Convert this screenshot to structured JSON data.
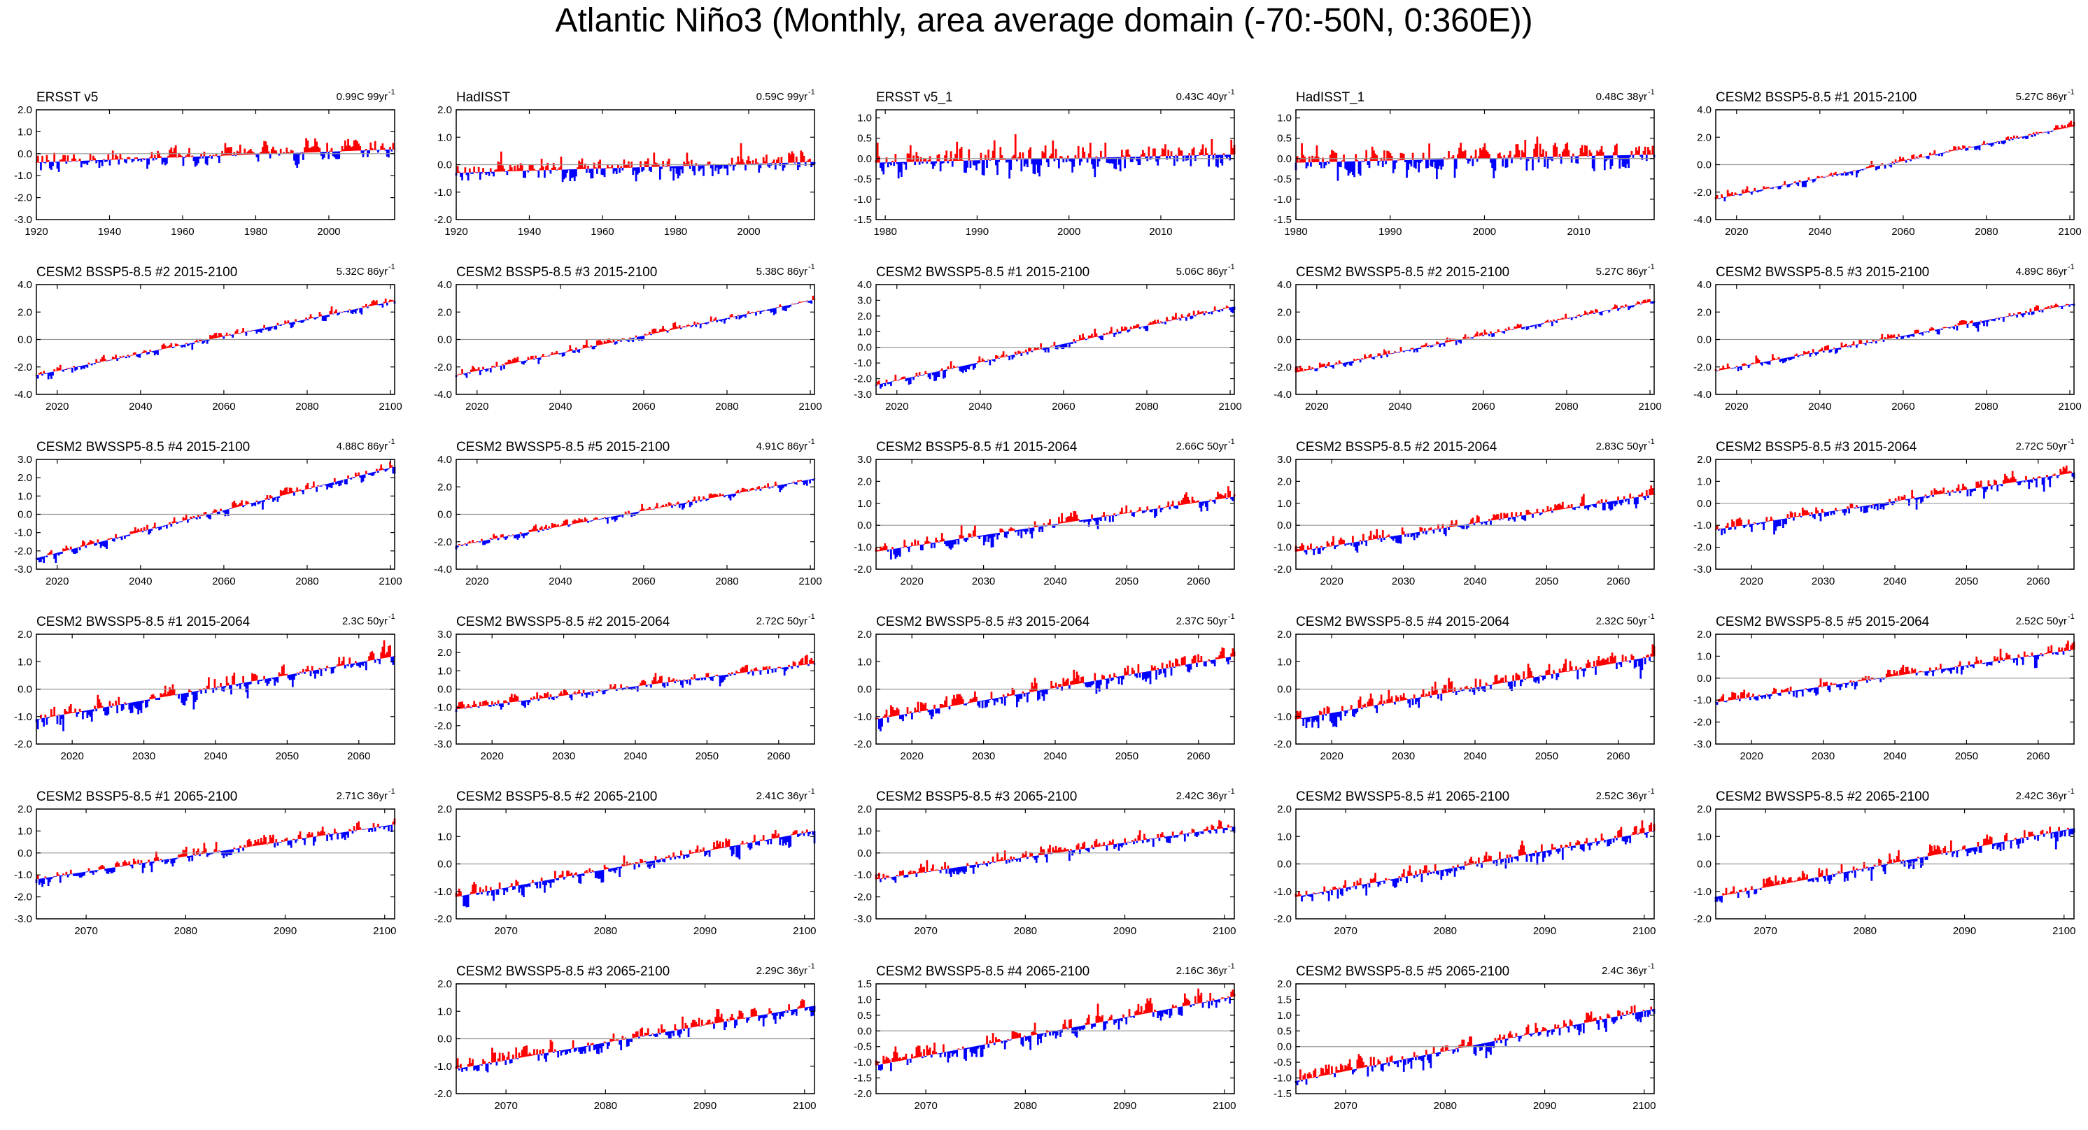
{
  "title": "Atlantic Niño3 (Monthly, area average domain (-70:-50N, 0:360E))",
  "colors": {
    "positive": "#ff0000",
    "negative": "#0000ff",
    "frame": "#000000",
    "zero_line": "#999999"
  },
  "chart_data": [
    {
      "id": "p1",
      "type": "area",
      "name": "ERSST v5",
      "stat": "0.99C 99yr",
      "stat_unit_sup": "-1",
      "xlim": [
        1920,
        2018
      ],
      "ylim": [
        -3.0,
        2.0
      ],
      "yticks": [
        "2.0",
        "1.0",
        "0.0",
        "-1.0",
        "-2.0",
        "-3.0"
      ],
      "xticks": [
        1920,
        1940,
        1960,
        1980,
        2000
      ],
      "trend": [
        -0.4,
        0.2
      ],
      "amp": 0.7
    },
    {
      "id": "p2",
      "type": "area",
      "name": "HadISST",
      "stat": "0.59C 99yr",
      "stat_unit_sup": "-1",
      "xlim": [
        1920,
        2018
      ],
      "ylim": [
        -2.0,
        2.0
      ],
      "yticks": [
        "2.0",
        "1.0",
        "0.0",
        "-1.0",
        "-2.0"
      ],
      "xticks": [
        1920,
        1940,
        1960,
        1980,
        2000
      ],
      "trend": [
        -0.3,
        0.1
      ],
      "amp": 0.6
    },
    {
      "id": "p3",
      "type": "area",
      "name": "ERSST v5_1",
      "stat": "0.43C 40yr",
      "stat_unit_sup": "-1",
      "xlim": [
        1979,
        2018
      ],
      "ylim": [
        -1.5,
        1.2
      ],
      "yticks": [
        "1.0",
        "0.5",
        "0.0",
        "-0.5",
        "-1.0",
        "-1.5"
      ],
      "xticks": [
        1980,
        1990,
        2000,
        2010
      ],
      "trend": [
        -0.1,
        0.1
      ],
      "amp": 0.55
    },
    {
      "id": "p4",
      "type": "area",
      "name": "HadISST_1",
      "stat": "0.48C 38yr",
      "stat_unit_sup": "-1",
      "xlim": [
        1980,
        2018
      ],
      "ylim": [
        -1.5,
        1.2
      ],
      "yticks": [
        "1.0",
        "0.5",
        "0.0",
        "-0.5",
        "-1.0",
        "-1.5"
      ],
      "xticks": [
        1980,
        1990,
        2000,
        2010
      ],
      "trend": [
        -0.1,
        0.1
      ],
      "amp": 0.55
    },
    {
      "id": "p5",
      "type": "area",
      "name": "CESM2 BSSP5-8.5 #1 2015-2100",
      "stat": "5.27C 86yr",
      "stat_unit_sup": "-1",
      "xlim": [
        2015,
        2101
      ],
      "ylim": [
        -4.0,
        4.0
      ],
      "yticks": [
        "4.0",
        "2.0",
        "0.0",
        "-2.0",
        "-4.0"
      ],
      "xticks": [
        2020,
        2040,
        2060,
        2080,
        2100
      ],
      "trend": [
        -2.5,
        2.8
      ],
      "amp": 0.5
    },
    {
      "id": "p6",
      "type": "area",
      "name": "CESM2 BSSP5-8.5 #2 2015-2100",
      "stat": "5.32C 86yr",
      "stat_unit_sup": "-1",
      "xlim": [
        2015,
        2101
      ],
      "ylim": [
        -4.0,
        4.0
      ],
      "yticks": [
        "4.0",
        "2.0",
        "0.0",
        "-2.0",
        "-4.0"
      ],
      "xticks": [
        2020,
        2040,
        2060,
        2080,
        2100
      ],
      "trend": [
        -2.6,
        2.8
      ],
      "amp": 0.5
    },
    {
      "id": "p7",
      "type": "area",
      "name": "CESM2 BSSP5-8.5 #3 2015-2100",
      "stat": "5.38C 86yr",
      "stat_unit_sup": "-1",
      "xlim": [
        2015,
        2101
      ],
      "ylim": [
        -4.0,
        4.0
      ],
      "yticks": [
        "4.0",
        "2.0",
        "0.0",
        "-2.0",
        "-4.0"
      ],
      "xticks": [
        2020,
        2040,
        2060,
        2080,
        2100
      ],
      "trend": [
        -2.6,
        2.9
      ],
      "amp": 0.5
    },
    {
      "id": "p8",
      "type": "area",
      "name": "CESM2 BWSSP5-8.5 #1 2015-2100",
      "stat": "5.06C 86yr",
      "stat_unit_sup": "-1",
      "xlim": [
        2015,
        2101
      ],
      "ylim": [
        -3.0,
        4.0
      ],
      "yticks": [
        "4.0",
        "3.0",
        "2.0",
        "1.0",
        "0.0",
        "-1.0",
        "-2.0",
        "-3.0"
      ],
      "xticks": [
        2020,
        2040,
        2060,
        2080,
        2100
      ],
      "trend": [
        -2.4,
        2.6
      ],
      "amp": 0.5
    },
    {
      "id": "p9",
      "type": "area",
      "name": "CESM2 BWSSP5-8.5 #2 2015-2100",
      "stat": "5.27C 86yr",
      "stat_unit_sup": "-1",
      "xlim": [
        2015,
        2101
      ],
      "ylim": [
        -4.0,
        4.0
      ],
      "yticks": [
        "4.0",
        "2.0",
        "0.0",
        "-2.0",
        "-4.0"
      ],
      "xticks": [
        2020,
        2040,
        2060,
        2080,
        2100
      ],
      "trend": [
        -2.4,
        2.8
      ],
      "amp": 0.5
    },
    {
      "id": "p10",
      "type": "area",
      "name": "CESM2 BWSSP5-8.5 #3 2015-2100",
      "stat": "4.89C 86yr",
      "stat_unit_sup": "-1",
      "xlim": [
        2015,
        2101
      ],
      "ylim": [
        -4.0,
        4.0
      ],
      "yticks": [
        "4.0",
        "2.0",
        "0.0",
        "-2.0",
        "-4.0"
      ],
      "xticks": [
        2020,
        2040,
        2060,
        2080,
        2100
      ],
      "trend": [
        -2.3,
        2.6
      ],
      "amp": 0.5
    },
    {
      "id": "p11",
      "type": "area",
      "name": "CESM2 BWSSP5-8.5 #4 2015-2100",
      "stat": "4.88C 86yr",
      "stat_unit_sup": "-1",
      "xlim": [
        2015,
        2101
      ],
      "ylim": [
        -3.0,
        3.0
      ],
      "yticks": [
        "3.0",
        "2.0",
        "1.0",
        "0.0",
        "-1.0",
        "-2.0",
        "-3.0"
      ],
      "xticks": [
        2020,
        2040,
        2060,
        2080,
        2100
      ],
      "trend": [
        -2.4,
        2.6
      ],
      "amp": 0.5
    },
    {
      "id": "p12",
      "type": "area",
      "name": "CESM2 BWSSP5-8.5 #5 2015-2100",
      "stat": "4.91C 86yr",
      "stat_unit_sup": "-1",
      "xlim": [
        2015,
        2101
      ],
      "ylim": [
        -4.0,
        4.0
      ],
      "yticks": [
        "4.0",
        "2.0",
        "0.0",
        "-2.0",
        "-4.0"
      ],
      "xticks": [
        2020,
        2040,
        2060,
        2080,
        2100
      ],
      "trend": [
        -2.3,
        2.6
      ],
      "amp": 0.5
    },
    {
      "id": "p13",
      "type": "area",
      "name": "CESM2 BSSP5-8.5 #1 2015-2064",
      "stat": "2.66C 50yr",
      "stat_unit_sup": "-1",
      "xlim": [
        2015,
        2065
      ],
      "ylim": [
        -2.0,
        3.0
      ],
      "yticks": [
        "3.0",
        "2.0",
        "1.0",
        "0.0",
        "-1.0",
        "-2.0"
      ],
      "xticks": [
        2020,
        2030,
        2040,
        2050,
        2060
      ],
      "trend": [
        -1.2,
        1.3
      ],
      "amp": 0.55
    },
    {
      "id": "p14",
      "type": "area",
      "name": "CESM2 BSSP5-8.5 #2 2015-2064",
      "stat": "2.83C 50yr",
      "stat_unit_sup": "-1",
      "xlim": [
        2015,
        2065
      ],
      "ylim": [
        -2.0,
        3.0
      ],
      "yticks": [
        "3.0",
        "2.0",
        "1.0",
        "0.0",
        "-1.0",
        "-2.0"
      ],
      "xticks": [
        2020,
        2030,
        2040,
        2050,
        2060
      ],
      "trend": [
        -1.2,
        1.4
      ],
      "amp": 0.55
    },
    {
      "id": "p15",
      "type": "area",
      "name": "CESM2 BSSP5-8.5 #3 2015-2064",
      "stat": "2.72C 50yr",
      "stat_unit_sup": "-1",
      "xlim": [
        2015,
        2065
      ],
      "ylim": [
        -3.0,
        2.0
      ],
      "yticks": [
        "2.0",
        "1.0",
        "0.0",
        "-1.0",
        "-2.0",
        "-3.0"
      ],
      "xticks": [
        2020,
        2030,
        2040,
        2050,
        2060
      ],
      "trend": [
        -1.2,
        1.4
      ],
      "amp": 0.55
    },
    {
      "id": "p16",
      "type": "area",
      "name": "CESM2 BWSSP5-8.5 #1 2015-2064",
      "stat": "2.3C 50yr",
      "stat_unit_sup": "-1",
      "xlim": [
        2015,
        2065
      ],
      "ylim": [
        -2.0,
        2.0
      ],
      "yticks": [
        "2.0",
        "1.0",
        "0.0",
        "-1.0",
        "-2.0"
      ],
      "xticks": [
        2020,
        2030,
        2040,
        2050,
        2060
      ],
      "trend": [
        -1.1,
        1.2
      ],
      "amp": 0.55
    },
    {
      "id": "p17",
      "type": "area",
      "name": "CESM2 BWSSP5-8.5 #2 2015-2064",
      "stat": "2.72C 50yr",
      "stat_unit_sup": "-1",
      "xlim": [
        2015,
        2065
      ],
      "ylim": [
        -3.0,
        3.0
      ],
      "yticks": [
        "3.0",
        "2.0",
        "1.0",
        "0.0",
        "-1.0",
        "-2.0",
        "-3.0"
      ],
      "xticks": [
        2020,
        2030,
        2040,
        2050,
        2060
      ],
      "trend": [
        -1.1,
        1.4
      ],
      "amp": 0.5
    },
    {
      "id": "p18",
      "type": "area",
      "name": "CESM2 BWSSP5-8.5 #3 2015-2064",
      "stat": "2.37C 50yr",
      "stat_unit_sup": "-1",
      "xlim": [
        2015,
        2065
      ],
      "ylim": [
        -2.0,
        2.0
      ],
      "yticks": [
        "2.0",
        "1.0",
        "0.0",
        "-1.0",
        "-2.0"
      ],
      "xticks": [
        2020,
        2030,
        2040,
        2050,
        2060
      ],
      "trend": [
        -1.1,
        1.2
      ],
      "amp": 0.55
    },
    {
      "id": "p19",
      "type": "area",
      "name": "CESM2 BWSSP5-8.5 #4 2015-2064",
      "stat": "2.32C 50yr",
      "stat_unit_sup": "-1",
      "xlim": [
        2015,
        2065
      ],
      "ylim": [
        -2.0,
        2.0
      ],
      "yticks": [
        "2.0",
        "1.0",
        "0.0",
        "-1.0",
        "-2.0"
      ],
      "xticks": [
        2020,
        2030,
        2040,
        2050,
        2060
      ],
      "trend": [
        -1.1,
        1.2
      ],
      "amp": 0.55
    },
    {
      "id": "p20",
      "type": "area",
      "name": "CESM2 BWSSP5-8.5 #5 2015-2064",
      "stat": "2.52C 50yr",
      "stat_unit_sup": "-1",
      "xlim": [
        2015,
        2065
      ],
      "ylim": [
        -3.0,
        2.0
      ],
      "yticks": [
        "2.0",
        "1.0",
        "0.0",
        "-1.0",
        "-2.0",
        "-3.0"
      ],
      "xticks": [
        2020,
        2030,
        2040,
        2050,
        2060
      ],
      "trend": [
        -1.1,
        1.3
      ],
      "amp": 0.5
    },
    {
      "id": "p21",
      "type": "area",
      "name": "CESM2 BSSP5-8.5 #1 2065-2100",
      "stat": "2.71C 36yr",
      "stat_unit_sup": "-1",
      "xlim": [
        2065,
        2101
      ],
      "ylim": [
        -3.0,
        2.0
      ],
      "yticks": [
        "2.0",
        "1.0",
        "0.0",
        "-1.0",
        "-2.0",
        "-3.0"
      ],
      "xticks": [
        2070,
        2080,
        2090,
        2100
      ],
      "trend": [
        -1.2,
        1.3
      ],
      "amp": 0.5
    },
    {
      "id": "p22",
      "type": "area",
      "name": "CESM2 BSSP5-8.5 #2 2065-2100",
      "stat": "2.41C 36yr",
      "stat_unit_sup": "-1",
      "xlim": [
        2065,
        2101
      ],
      "ylim": [
        -2.0,
        2.0
      ],
      "yticks": [
        "2.0",
        "1.0",
        "0.0",
        "-1.0",
        "-2.0"
      ],
      "xticks": [
        2070,
        2080,
        2090,
        2100
      ],
      "trend": [
        -1.2,
        1.2
      ],
      "amp": 0.5
    },
    {
      "id": "p23",
      "type": "area",
      "name": "CESM2 BSSP5-8.5 #3 2065-2100",
      "stat": "2.42C 36yr",
      "stat_unit_sup": "-1",
      "xlim": [
        2065,
        2101
      ],
      "ylim": [
        -3.0,
        2.0
      ],
      "yticks": [
        "2.0",
        "1.0",
        "0.0",
        "-1.0",
        "-2.0",
        "-3.0"
      ],
      "xticks": [
        2070,
        2080,
        2090,
        2100
      ],
      "trend": [
        -1.2,
        1.2
      ],
      "amp": 0.5
    },
    {
      "id": "p24",
      "type": "area",
      "name": "CESM2 BWSSP5-8.5 #1 2065-2100",
      "stat": "2.52C 36yr",
      "stat_unit_sup": "-1",
      "xlim": [
        2065,
        2101
      ],
      "ylim": [
        -2.0,
        2.0
      ],
      "yticks": [
        "2.0",
        "1.0",
        "0.0",
        "-1.0",
        "-2.0"
      ],
      "xticks": [
        2070,
        2080,
        2090,
        2100
      ],
      "trend": [
        -1.2,
        1.2
      ],
      "amp": 0.5
    },
    {
      "id": "p25",
      "type": "area",
      "name": "CESM2 BWSSP5-8.5 #2 2065-2100",
      "stat": "2.42C 36yr",
      "stat_unit_sup": "-1",
      "xlim": [
        2065,
        2101
      ],
      "ylim": [
        -2.0,
        2.0
      ],
      "yticks": [
        "2.0",
        "1.0",
        "0.0",
        "-1.0",
        "-2.0"
      ],
      "xticks": [
        2070,
        2080,
        2090,
        2100
      ],
      "trend": [
        -1.2,
        1.3
      ],
      "amp": 0.5
    },
    {
      "id": "p26",
      "type": "area",
      "name": "CESM2 BWSSP5-8.5 #3 2065-2100",
      "stat": "2.29C 36yr",
      "stat_unit_sup": "-1",
      "xlim": [
        2065,
        2101
      ],
      "ylim": [
        -2.0,
        2.0
      ],
      "yticks": [
        "2.0",
        "1.0",
        "0.0",
        "-1.0",
        "-2.0"
      ],
      "xticks": [
        2070,
        2080,
        2090,
        2100
      ],
      "trend": [
        -1.1,
        1.2
      ],
      "amp": 0.5
    },
    {
      "id": "p27",
      "type": "area",
      "name": "CESM2 BWSSP5-8.5 #4 2065-2100",
      "stat": "2.16C 36yr",
      "stat_unit_sup": "-1",
      "xlim": [
        2065,
        2101
      ],
      "ylim": [
        -2.0,
        1.5
      ],
      "yticks": [
        "1.5",
        "1.0",
        "0.5",
        "0.0",
        "-0.5",
        "-1.0",
        "-1.5",
        "-2.0"
      ],
      "xticks": [
        2070,
        2080,
        2090,
        2100
      ],
      "trend": [
        -1.1,
        1.1
      ],
      "amp": 0.5
    },
    {
      "id": "p28",
      "type": "area",
      "name": "CESM2 BWSSP5-8.5 #5 2065-2100",
      "stat": "2.4C 36yr",
      "stat_unit_sup": "-1",
      "xlim": [
        2065,
        2101
      ],
      "ylim": [
        -1.5,
        2.0
      ],
      "yticks": [
        "2.0",
        "1.5",
        "1.0",
        "0.5",
        "0.0",
        "-0.5",
        "-1.0",
        "-1.5"
      ],
      "xticks": [
        2070,
        2080,
        2090,
        2100
      ],
      "trend": [
        -1.1,
        1.2
      ],
      "amp": 0.5
    }
  ]
}
